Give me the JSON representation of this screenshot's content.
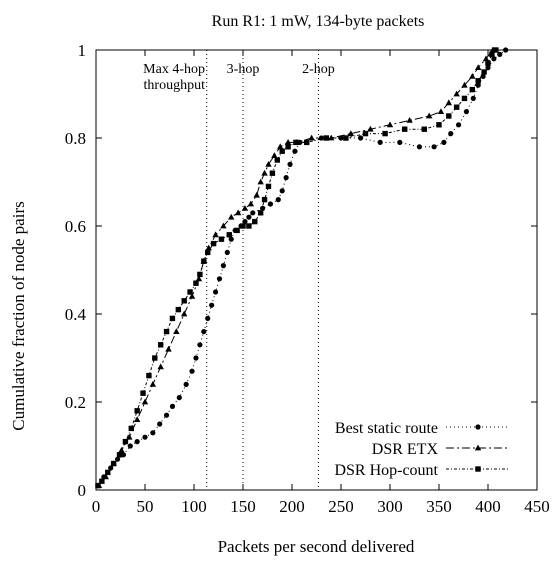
{
  "chart_data": {
    "type": "line",
    "title": "Run R1: 1 mW, 134-byte packets",
    "xlabel": "Packets per second delivered",
    "ylabel": "Cumulative fraction of node pairs",
    "xlim": [
      0,
      450
    ],
    "ylim": [
      0,
      1
    ],
    "xticks": [
      "0",
      "50",
      "100",
      "150",
      "200",
      "250",
      "300",
      "350",
      "400",
      "450"
    ],
    "yticks": [
      "0",
      "0.2",
      "0.4",
      "0.6",
      "0.8",
      "1"
    ],
    "grid": false,
    "legend_position": "bottom-right",
    "reference_lines": [
      {
        "x": 113,
        "label_lines": [
          "Max 4-hop",
          "throughput"
        ]
      },
      {
        "x": 150,
        "label_lines": [
          "3-hop"
        ]
      },
      {
        "x": 227,
        "label_lines": [
          "2-hop"
        ]
      }
    ],
    "series": [
      {
        "name": "Best static route",
        "marker": "circle",
        "dash": "1,3",
        "points": [
          [
            2,
            0.01
          ],
          [
            8,
            0.03
          ],
          [
            15,
            0.05
          ],
          [
            22,
            0.07
          ],
          [
            28,
            0.08
          ],
          [
            35,
            0.1
          ],
          [
            42,
            0.11
          ],
          [
            50,
            0.12
          ],
          [
            58,
            0.13
          ],
          [
            65,
            0.15
          ],
          [
            72,
            0.17
          ],
          [
            78,
            0.19
          ],
          [
            85,
            0.21
          ],
          [
            92,
            0.24
          ],
          [
            98,
            0.27
          ],
          [
            102,
            0.3
          ],
          [
            106,
            0.33
          ],
          [
            110,
            0.36
          ],
          [
            114,
            0.39
          ],
          [
            118,
            0.42
          ],
          [
            122,
            0.45
          ],
          [
            126,
            0.48
          ],
          [
            130,
            0.51
          ],
          [
            134,
            0.54
          ],
          [
            138,
            0.57
          ],
          [
            142,
            0.59
          ],
          [
            148,
            0.6
          ],
          [
            152,
            0.61
          ],
          [
            156,
            0.62
          ],
          [
            160,
            0.63
          ],
          [
            170,
            0.64
          ],
          [
            178,
            0.65
          ],
          [
            186,
            0.66
          ],
          [
            190,
            0.68
          ],
          [
            194,
            0.71
          ],
          [
            198,
            0.74
          ],
          [
            203,
            0.77
          ],
          [
            208,
            0.79
          ],
          [
            215,
            0.79
          ],
          [
            230,
            0.8
          ],
          [
            250,
            0.8
          ],
          [
            270,
            0.8
          ],
          [
            290,
            0.79
          ],
          [
            310,
            0.79
          ],
          [
            330,
            0.78
          ],
          [
            345,
            0.78
          ],
          [
            355,
            0.79
          ],
          [
            362,
            0.81
          ],
          [
            370,
            0.83
          ],
          [
            378,
            0.86
          ],
          [
            385,
            0.89
          ],
          [
            390,
            0.92
          ],
          [
            395,
            0.94
          ],
          [
            400,
            0.96
          ],
          [
            406,
            0.98
          ],
          [
            412,
            0.99
          ],
          [
            418,
            1.0
          ]
        ]
      },
      {
        "name": "DSR ETX",
        "marker": "triangle",
        "dash": "8,3,2,3",
        "points": [
          [
            3,
            0.01
          ],
          [
            10,
            0.03
          ],
          [
            18,
            0.06
          ],
          [
            26,
            0.09
          ],
          [
            34,
            0.12
          ],
          [
            42,
            0.16
          ],
          [
            50,
            0.2
          ],
          [
            58,
            0.24
          ],
          [
            66,
            0.28
          ],
          [
            74,
            0.32
          ],
          [
            82,
            0.36
          ],
          [
            90,
            0.4
          ],
          [
            98,
            0.44
          ],
          [
            105,
            0.48
          ],
          [
            110,
            0.52
          ],
          [
            115,
            0.55
          ],
          [
            122,
            0.58
          ],
          [
            130,
            0.6
          ],
          [
            138,
            0.62
          ],
          [
            145,
            0.63
          ],
          [
            152,
            0.64
          ],
          [
            158,
            0.65
          ],
          [
            164,
            0.67
          ],
          [
            168,
            0.7
          ],
          [
            172,
            0.72
          ],
          [
            176,
            0.74
          ],
          [
            182,
            0.76
          ],
          [
            188,
            0.78
          ],
          [
            196,
            0.79
          ],
          [
            205,
            0.79
          ],
          [
            220,
            0.8
          ],
          [
            240,
            0.8
          ],
          [
            260,
            0.81
          ],
          [
            280,
            0.82
          ],
          [
            300,
            0.83
          ],
          [
            320,
            0.84
          ],
          [
            340,
            0.85
          ],
          [
            352,
            0.86
          ],
          [
            360,
            0.88
          ],
          [
            368,
            0.9
          ],
          [
            376,
            0.92
          ],
          [
            384,
            0.94
          ],
          [
            390,
            0.96
          ],
          [
            398,
            0.98
          ],
          [
            405,
            1.0
          ]
        ]
      },
      {
        "name": "DSR Hop-count",
        "marker": "square",
        "dash": "3,2,1,2",
        "points": [
          [
            2,
            0.01
          ],
          [
            6,
            0.02
          ],
          [
            12,
            0.04
          ],
          [
            18,
            0.06
          ],
          [
            24,
            0.08
          ],
          [
            30,
            0.11
          ],
          [
            36,
            0.14
          ],
          [
            42,
            0.18
          ],
          [
            48,
            0.22
          ],
          [
            54,
            0.26
          ],
          [
            60,
            0.3
          ],
          [
            66,
            0.33
          ],
          [
            72,
            0.36
          ],
          [
            78,
            0.39
          ],
          [
            84,
            0.41
          ],
          [
            90,
            0.43
          ],
          [
            96,
            0.45
          ],
          [
            102,
            0.47
          ],
          [
            106,
            0.49
          ],
          [
            110,
            0.52
          ],
          [
            114,
            0.54
          ],
          [
            120,
            0.56
          ],
          [
            128,
            0.57
          ],
          [
            136,
            0.58
          ],
          [
            144,
            0.59
          ],
          [
            150,
            0.6
          ],
          [
            156,
            0.6
          ],
          [
            162,
            0.61
          ],
          [
            168,
            0.63
          ],
          [
            172,
            0.66
          ],
          [
            176,
            0.69
          ],
          [
            180,
            0.72
          ],
          [
            185,
            0.75
          ],
          [
            190,
            0.77
          ],
          [
            196,
            0.78
          ],
          [
            204,
            0.79
          ],
          [
            215,
            0.79
          ],
          [
            235,
            0.8
          ],
          [
            255,
            0.8
          ],
          [
            275,
            0.81
          ],
          [
            295,
            0.81
          ],
          [
            315,
            0.82
          ],
          [
            335,
            0.82
          ],
          [
            350,
            0.83
          ],
          [
            360,
            0.85
          ],
          [
            368,
            0.87
          ],
          [
            376,
            0.89
          ],
          [
            384,
            0.91
          ],
          [
            390,
            0.93
          ],
          [
            396,
            0.95
          ],
          [
            400,
            0.97
          ],
          [
            404,
            0.99
          ],
          [
            408,
            1.0
          ]
        ]
      }
    ]
  }
}
